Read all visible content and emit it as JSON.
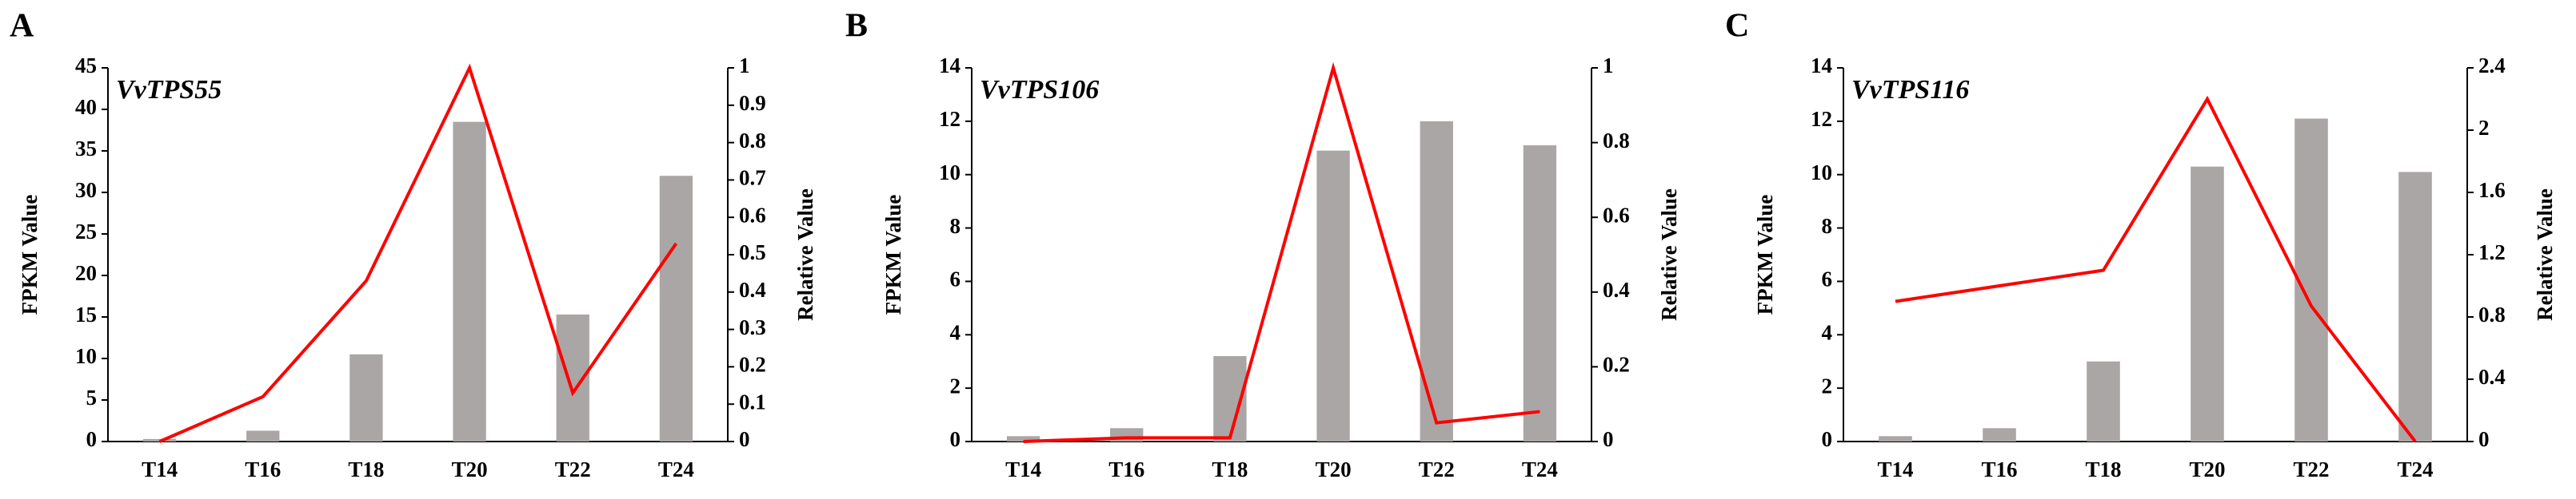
{
  "chart_data": [
    {
      "type": "bar-line",
      "panel": "A",
      "title": "VvTPS55",
      "ylabel": "FPKM Value",
      "y2label": "Relative Value",
      "categories": [
        "T14",
        "T16",
        "T18",
        "T20",
        "T22",
        "T24"
      ],
      "series": [
        {
          "type": "bar",
          "color": "#aaa6a5",
          "values": [
            0.3,
            1.3,
            10.5,
            38.5,
            15.3,
            32
          ]
        },
        {
          "type": "line",
          "axis": "y2",
          "color": "#ff0000",
          "values": [
            0,
            0.12,
            0.43,
            1.0,
            0.13,
            0.53
          ]
        }
      ],
      "ylim": [
        0,
        45
      ],
      "yticks": [
        0,
        5,
        10,
        15,
        20,
        25,
        30,
        35,
        40,
        45
      ],
      "y2lim": [
        0,
        1
      ],
      "y2ticks": [
        0,
        0.1,
        0.2,
        0.3,
        0.4,
        0.5,
        0.6,
        0.7,
        0.8,
        0.9,
        1
      ]
    },
    {
      "type": "bar-line",
      "panel": "B",
      "title": "VvTPS106",
      "ylabel": "FPKM Value",
      "y2label": "Relative Value",
      "categories": [
        "T14",
        "T16",
        "T18",
        "T20",
        "T22",
        "T24"
      ],
      "series": [
        {
          "type": "bar",
          "color": "#aaa6a5",
          "values": [
            0.2,
            0.5,
            3.2,
            10.9,
            12.0,
            11.1
          ]
        },
        {
          "type": "line",
          "axis": "y2",
          "color": "#ff0000",
          "values": [
            0,
            0.01,
            0.01,
            1.0,
            0.05,
            0.08
          ]
        }
      ],
      "ylim": [
        0,
        14
      ],
      "yticks": [
        0,
        2,
        4,
        6,
        8,
        10,
        12,
        14
      ],
      "y2lim": [
        0,
        1
      ],
      "y2ticks": [
        0,
        0.2,
        0.4,
        0.6,
        0.8,
        1
      ]
    },
    {
      "type": "bar-line",
      "panel": "C",
      "title": "VvTPS116",
      "ylabel": "FPKM Value",
      "y2label": "Relative Value",
      "categories": [
        "T14",
        "T16",
        "T18",
        "T20",
        "T22",
        "T24"
      ],
      "series": [
        {
          "type": "bar",
          "color": "#aaa6a5",
          "values": [
            0.2,
            0.5,
            3.0,
            10.3,
            12.1,
            10.1
          ]
        },
        {
          "type": "line",
          "axis": "y2",
          "color": "#ff0000",
          "values": [
            0.9,
            1.0,
            1.1,
            2.2,
            0.87,
            0
          ]
        }
      ],
      "ylim": [
        0,
        14
      ],
      "yticks": [
        0,
        2,
        4,
        6,
        8,
        10,
        12,
        14
      ],
      "y2lim": [
        0,
        2.4
      ],
      "y2ticks": [
        0,
        0.4,
        0.8,
        1.2,
        1.6,
        2,
        2.4
      ]
    }
  ]
}
